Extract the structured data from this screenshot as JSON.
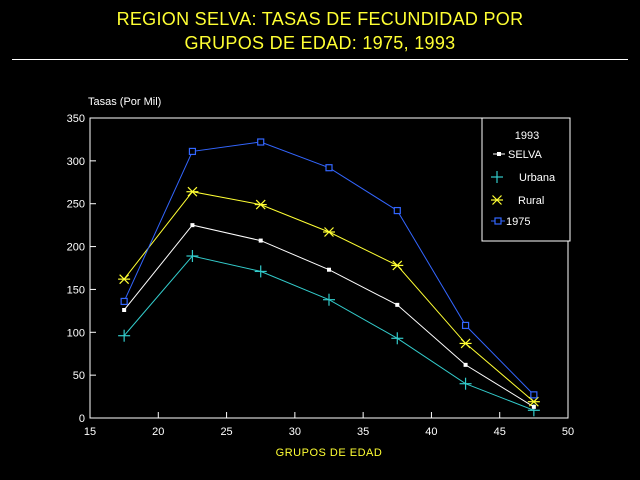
{
  "title_line1": "REGION SELVA: TASAS DE FECUNDIDAD POR",
  "title_line2": "GRUPOS DE EDAD: 1975, 1993",
  "colors": {
    "background": "#000000",
    "title": "#ffff33",
    "axis": "#ffffff",
    "selva": "#ffffff",
    "urbana": "#33cccc",
    "rural": "#ffff33",
    "y1975": "#3366ff"
  },
  "chart_data": {
    "type": "line",
    "ylabel": "Tasas (Por Mil)",
    "xlabel": "GRUPOS DE EDAD",
    "xlim": [
      15,
      50
    ],
    "ylim": [
      0,
      350
    ],
    "x_ticks": [
      "15",
      "20",
      "25",
      "30",
      "35",
      "40",
      "45",
      "50"
    ],
    "y_ticks": [
      "0",
      "50",
      "100",
      "150",
      "200",
      "250",
      "300",
      "350"
    ],
    "x": [
      17.5,
      22.5,
      27.5,
      32.5,
      37.5,
      42.5,
      47.5
    ],
    "legend_title": "1993",
    "legend_position": "top-right",
    "series": [
      {
        "key": "selva",
        "name": "SELVA",
        "marker": "square-filled",
        "values": [
          126,
          225,
          207,
          173,
          132,
          62,
          13
        ]
      },
      {
        "key": "urbana",
        "name": "Urbana",
        "marker": "plus",
        "values": [
          96,
          189,
          171,
          138,
          93,
          40,
          9
        ]
      },
      {
        "key": "rural",
        "name": "Rural",
        "marker": "asterisk",
        "values": [
          162,
          264,
          249,
          217,
          178,
          87,
          19
        ]
      },
      {
        "key": "y1975",
        "name": "1975",
        "marker": "square-open",
        "values": [
          136,
          311,
          322,
          292,
          242,
          108,
          27
        ]
      }
    ]
  }
}
